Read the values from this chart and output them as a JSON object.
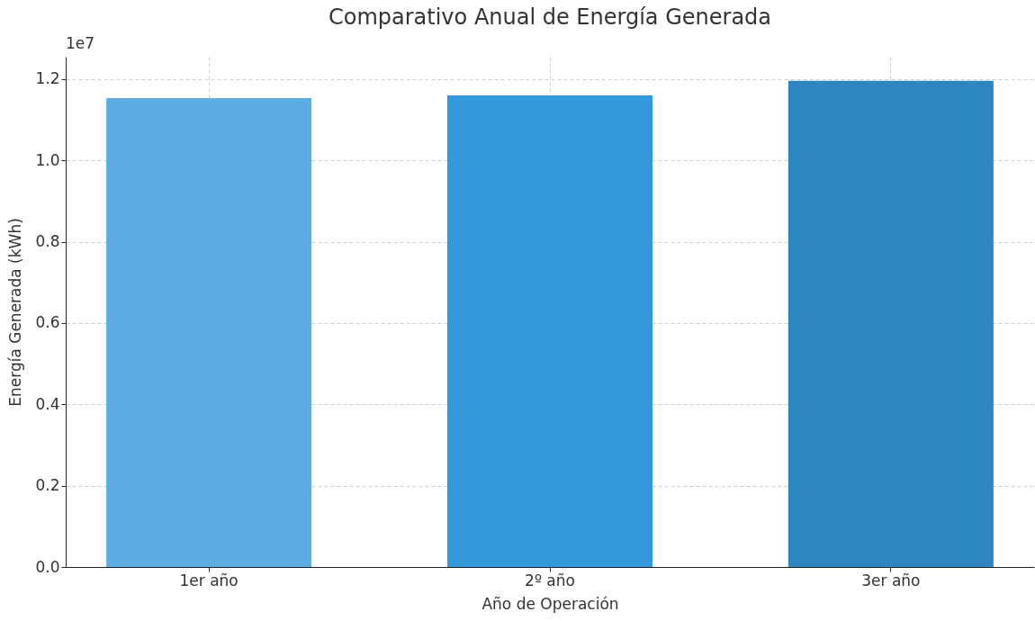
{
  "chart_data": {
    "type": "bar",
    "title": "Comparativo Anual de Energía Generada",
    "xlabel": "Año de Operación",
    "ylabel": "Energía Generada (kWh)",
    "categories": [
      "1er año",
      "2º año",
      "3er año"
    ],
    "values": [
      1.153,
      1.16,
      1.196
    ],
    "colors": [
      "#5dade2",
      "#3498db",
      "#2e86c1"
    ],
    "ylim": [
      0,
      1.255
    ],
    "yticks": [
      {
        "value": 0,
        "label": "0.0"
      },
      0.2,
      0.4,
      0.6,
      0.8,
      {
        "value": 1,
        "label": "1.0"
      },
      1.2
    ],
    "annotations": [
      "1e7"
    ],
    "grid": true
  }
}
